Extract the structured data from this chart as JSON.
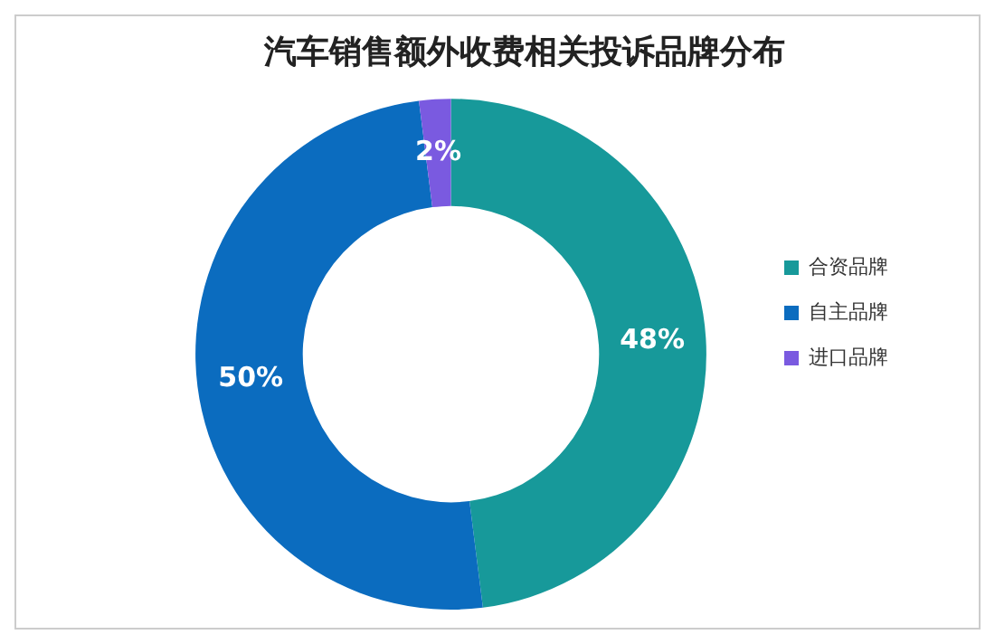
{
  "chart_data": {
    "type": "donut",
    "title": "汽车销售额外收费相关投诉品牌分布",
    "categories": [
      "合资品牌",
      "自主品牌",
      "进口品牌"
    ],
    "values": [
      48,
      50,
      2
    ],
    "colors": [
      "#17999a",
      "#0b6cbf",
      "#7a5ae0"
    ],
    "value_labels": [
      "48%",
      "50%",
      "2%"
    ],
    "legend": "right"
  }
}
